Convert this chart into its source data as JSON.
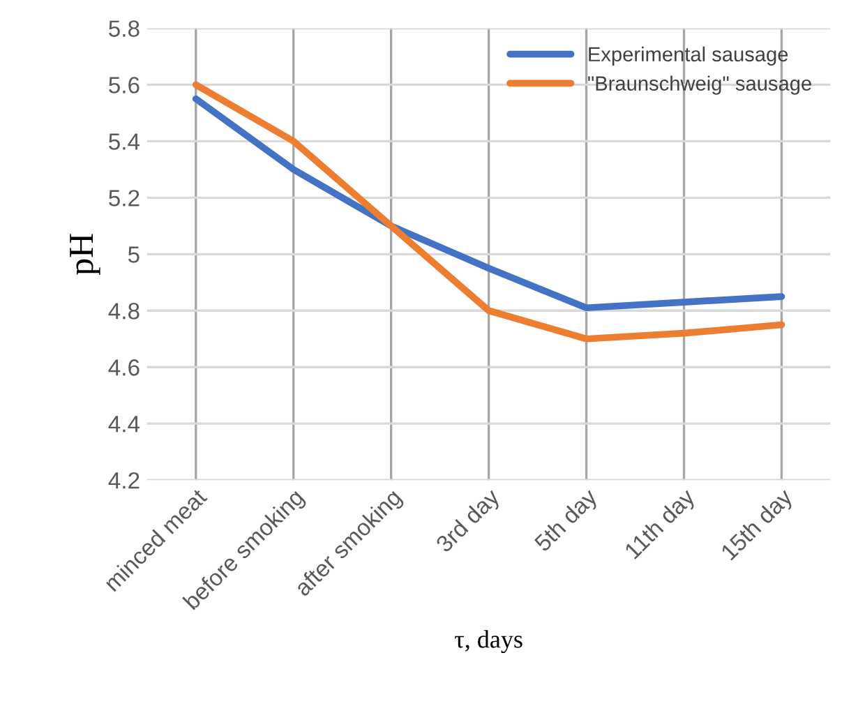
{
  "chart_data": {
    "type": "line",
    "xlabel": "τ, days",
    "ylabel": "pH",
    "categories": [
      "minced meat",
      "before smoking",
      "after smoking",
      "3rd day",
      "5th day",
      "11th day",
      "15th day"
    ],
    "series": [
      {
        "name": "Experimental sausage",
        "color": "#4472c4",
        "values": [
          5.55,
          5.3,
          5.1,
          4.95,
          4.81,
          4.83,
          4.85
        ]
      },
      {
        "name": "\"Braunschweig\" sausage",
        "color": "#ed7d31",
        "values": [
          5.6,
          5.4,
          5.1,
          4.8,
          4.7,
          4.72,
          4.75
        ]
      }
    ],
    "ylim": [
      4.2,
      5.8
    ],
    "yticks": [
      4.2,
      4.4,
      4.6,
      4.8,
      5,
      5.2,
      5.4,
      5.6,
      5.8
    ],
    "grid": true,
    "legend": "top right",
    "marker": "none",
    "line_style": "solid"
  }
}
